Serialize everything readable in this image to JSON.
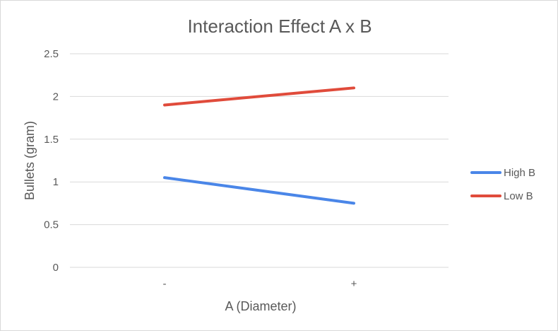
{
  "chart_data": {
    "type": "line",
    "title": "Interaction Effect A x B",
    "xlabel": "A (Diameter)",
    "ylabel": "Bullets (gram)",
    "categories": [
      "-",
      "+"
    ],
    "ylim": [
      0,
      2.5
    ],
    "yticks": [
      "0",
      "0.5",
      "1",
      "1.5",
      "2",
      "2.5"
    ],
    "ytick_values": [
      0,
      0.5,
      1,
      1.5,
      2,
      2.5
    ],
    "grid": true,
    "legend_position": "right",
    "series": [
      {
        "name": "High B",
        "values": [
          1.05,
          0.75
        ],
        "color": "#4a86e8"
      },
      {
        "name": "Low B",
        "values": [
          1.9,
          2.1
        ],
        "color": "#e04b3b"
      }
    ]
  }
}
